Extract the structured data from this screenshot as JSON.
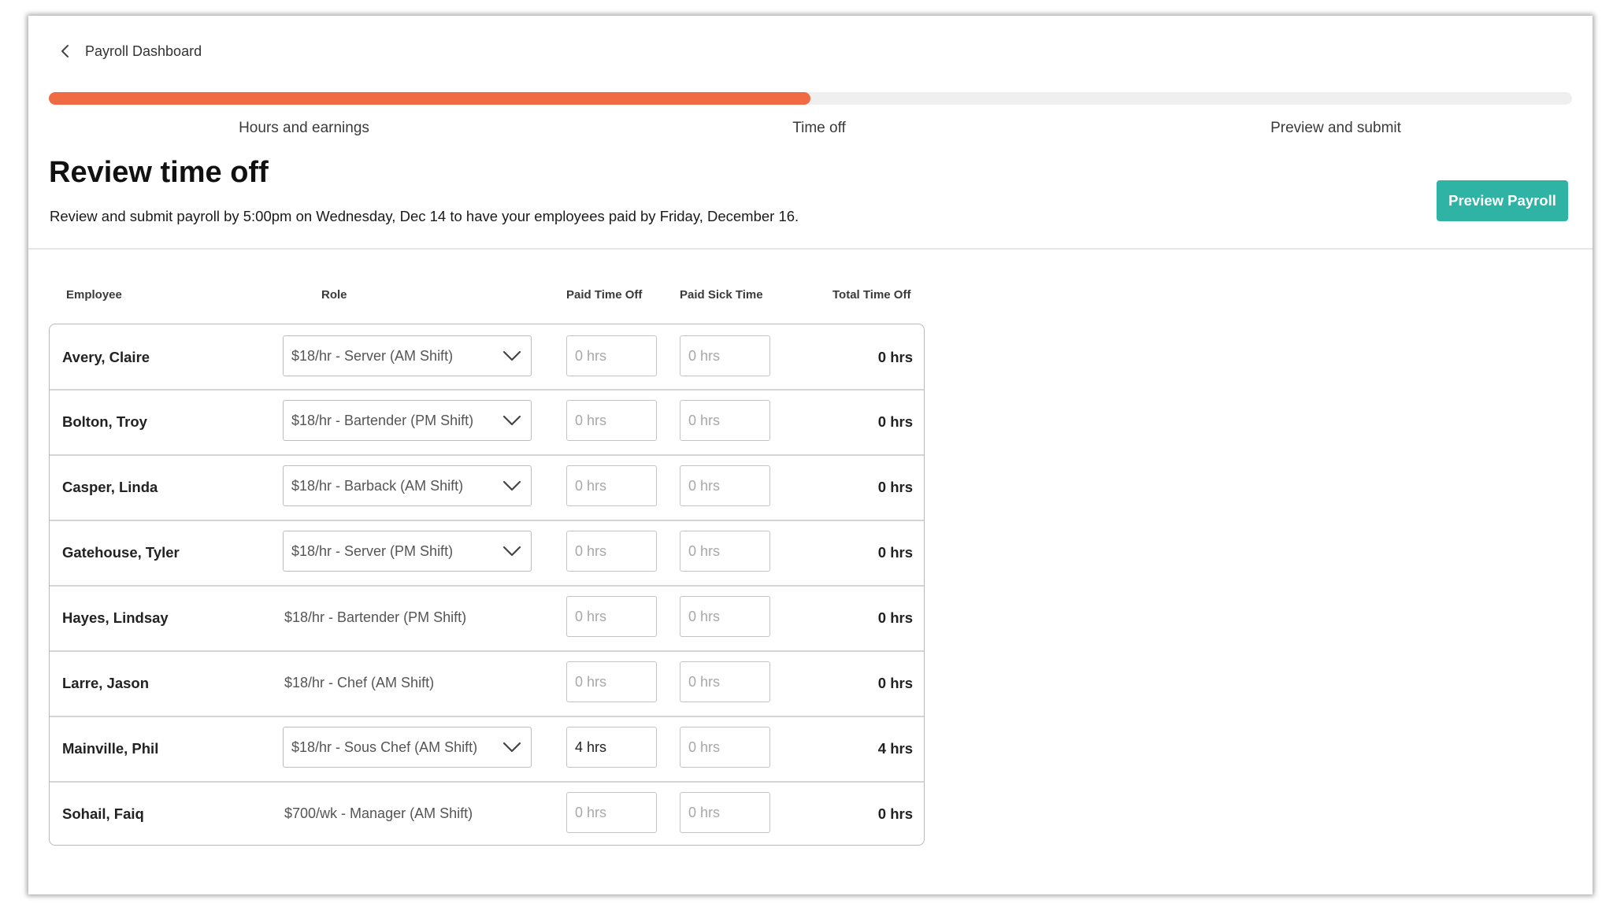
{
  "nav": {
    "back_label": "Payroll Dashboard"
  },
  "progress": {
    "fraction": 0.5,
    "color": "#f06b43"
  },
  "steps": [
    {
      "label": "Hours and earnings"
    },
    {
      "label": "Time off"
    },
    {
      "label": "Preview and submit"
    }
  ],
  "header": {
    "title": "Review time off",
    "subtitle": "Review and submit payroll by 5:00pm on Wednesday, Dec 14 to have your employees paid by Friday, December 16.",
    "preview_button": "Preview Payroll",
    "accent_color": "#2fb3a5"
  },
  "table": {
    "columns": {
      "employee": "Employee",
      "role": "Role",
      "paid_time_off": "Paid Time Off",
      "paid_sick_time": "Paid Sick Time",
      "total_time_off": "Total Time Off"
    },
    "rows": [
      {
        "name": "Avery, Claire",
        "role": "$18/hr - Server (AM Shift)",
        "role_dropdown": true,
        "pto": "",
        "pto_placeholder": "0 hrs",
        "pst": "",
        "pst_placeholder": "0 hrs",
        "total": "0 hrs"
      },
      {
        "name": "Bolton, Troy",
        "role": "$18/hr - Bartender (PM Shift)",
        "role_dropdown": true,
        "pto": "",
        "pto_placeholder": "0 hrs",
        "pst": "",
        "pst_placeholder": "0 hrs",
        "total": "0 hrs"
      },
      {
        "name": "Casper, Linda",
        "role": "$18/hr - Barback (AM Shift)",
        "role_dropdown": true,
        "pto": "",
        "pto_placeholder": "0 hrs",
        "pst": "",
        "pst_placeholder": "0 hrs",
        "total": "0 hrs"
      },
      {
        "name": "Gatehouse, Tyler",
        "role": "$18/hr - Server (PM Shift)",
        "role_dropdown": true,
        "pto": "",
        "pto_placeholder": "0 hrs",
        "pst": "",
        "pst_placeholder": "0 hrs",
        "total": "0 hrs"
      },
      {
        "name": "Hayes, Lindsay",
        "role": "$18/hr - Bartender (PM Shift)",
        "role_dropdown": false,
        "pto": "",
        "pto_placeholder": "0 hrs",
        "pst": "",
        "pst_placeholder": "0 hrs",
        "total": "0 hrs"
      },
      {
        "name": "Larre, Jason",
        "role": "$18/hr - Chef (AM Shift)",
        "role_dropdown": false,
        "pto": "",
        "pto_placeholder": "0 hrs",
        "pst": "",
        "pst_placeholder": "0 hrs",
        "total": "0 hrs"
      },
      {
        "name": "Mainville, Phil",
        "role": "$18/hr - Sous Chef (AM Shift)",
        "role_dropdown": true,
        "pto": "4 hrs",
        "pto_placeholder": "0 hrs",
        "pst": "",
        "pst_placeholder": "0 hrs",
        "total": "4 hrs"
      },
      {
        "name": "Sohail, Faiq",
        "role": "$700/wk - Manager (AM Shift)",
        "role_dropdown": false,
        "pto": "",
        "pto_placeholder": "0 hrs",
        "pst": "",
        "pst_placeholder": "0 hrs",
        "total": "0 hrs"
      }
    ]
  },
  "icons": {
    "back": "chevron-left-icon",
    "dropdown": "chevron-down-icon"
  }
}
